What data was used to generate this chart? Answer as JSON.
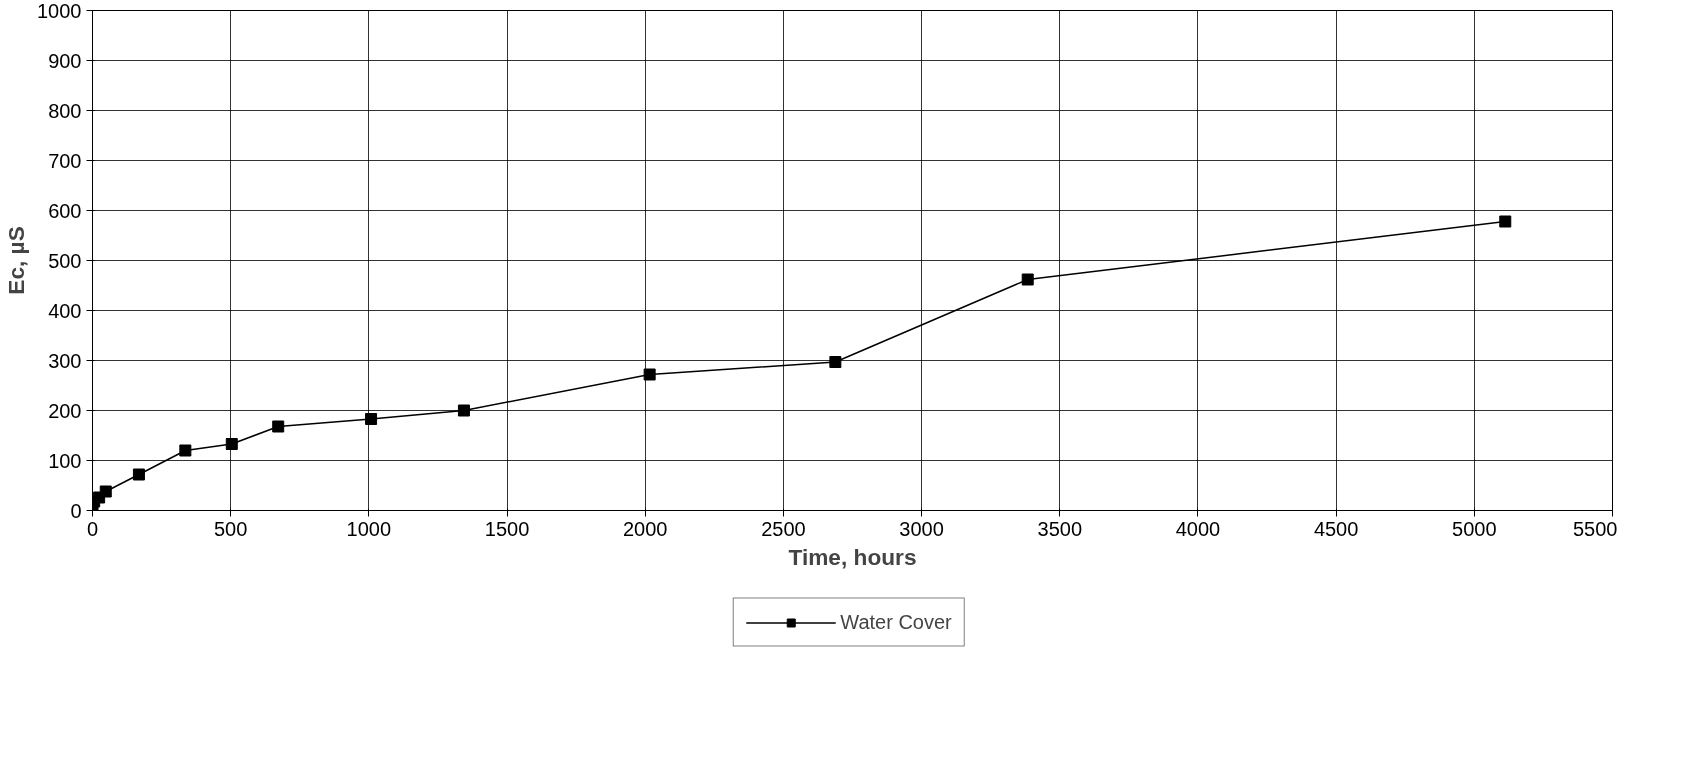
{
  "chart_data": {
    "type": "line",
    "xlabel": "Time, hours",
    "ylabel": "Ec, µS",
    "x": [
      0,
      6,
      24,
      48,
      168,
      336,
      504,
      672,
      1008,
      1344,
      2016,
      2688,
      3384,
      5112
    ],
    "series": [
      {
        "name": "Water Cover",
        "color": "#000000",
        "values": [
          10,
          18,
          26,
          38,
          72,
          120,
          133,
          168,
          183,
          200,
          272,
          297,
          462,
          578
        ]
      }
    ],
    "xlim": [
      0,
      5500
    ],
    "xticks": [
      0,
      500,
      1000,
      1500,
      2000,
      2500,
      3000,
      3500,
      4000,
      4500,
      5000,
      5500
    ],
    "ylim": [
      0,
      1000
    ],
    "yticks": [
      0,
      100,
      200,
      300,
      400,
      500,
      600,
      700,
      800,
      900,
      1000
    ],
    "grid": true,
    "legend": "bottom",
    "marker": "square",
    "line_style": "solid"
  }
}
